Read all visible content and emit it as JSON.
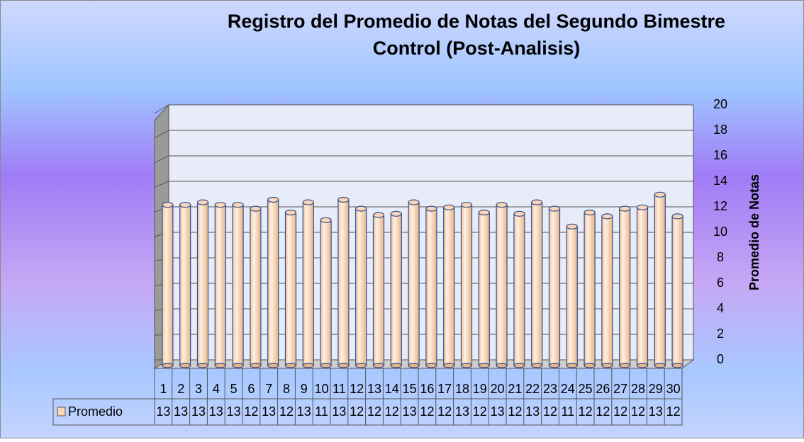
{
  "chart_data": {
    "type": "bar",
    "title": [
      "Registro del Promedio de Notas del Segundo  Bimestre",
      "Control (Post-Analisis)"
    ],
    "y_axis_label": "Promedio de Notas",
    "categories": [
      "1",
      "2",
      "3",
      "4",
      "5",
      "6",
      "7",
      "8",
      "9",
      "10",
      "11",
      "12",
      "13",
      "14",
      "15",
      "16",
      "17",
      "18",
      "19",
      "20",
      "21",
      "22",
      "23",
      "24",
      "25",
      "26",
      "27",
      "28",
      "29",
      "30"
    ],
    "series": [
      {
        "name": "Promedio",
        "color": "#fbd5b5",
        "values": [
          12.6,
          12.6,
          12.8,
          12.6,
          12.6,
          12.3,
          13.0,
          12.0,
          12.8,
          11.4,
          13.0,
          12.3,
          11.8,
          11.9,
          12.8,
          12.3,
          12.4,
          12.6,
          12.0,
          12.6,
          11.9,
          12.8,
          12.3,
          10.9,
          12.0,
          11.7,
          12.3,
          12.4,
          13.4,
          11.7
        ],
        "value_labels": [
          "13",
          "13",
          "13",
          "13",
          "13",
          "12",
          "13",
          "12",
          "13",
          "11",
          "13",
          "12",
          "12",
          "12",
          "13",
          "12",
          "12",
          "13",
          "12",
          "13",
          "12",
          "13",
          "12",
          "11",
          "12",
          "12",
          "12",
          "12",
          "13",
          "12"
        ]
      }
    ],
    "ylim": [
      0,
      20
    ],
    "yticks": [
      0,
      2,
      4,
      6,
      8,
      10,
      12,
      14,
      16,
      18,
      20
    ],
    "grid": true,
    "y_axis_side": "right"
  }
}
